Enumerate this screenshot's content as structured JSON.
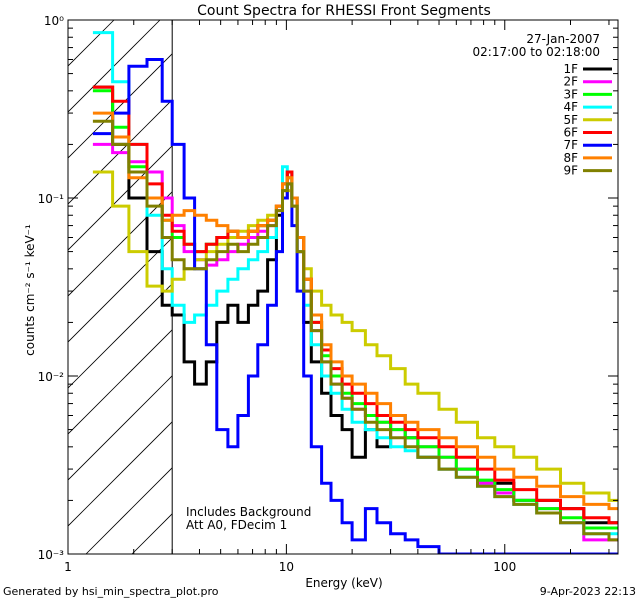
{
  "chart_data": {
    "type": "line",
    "title": "Count Spectra for RHESSI Front Segments",
    "date": "27-Jan-2007",
    "time_range": "02:17:00 to 02:18:00",
    "xlabel": "Energy (keV)",
    "ylabel": "counts cm⁻² s⁻¹ keV⁻¹",
    "xscale": "log",
    "yscale": "log",
    "xlim": [
      1,
      330
    ],
    "ylim": [
      0.001,
      1
    ],
    "x_ticks": [
      {
        "value": 1,
        "label": "1"
      },
      {
        "value": 10,
        "label": "10"
      },
      {
        "value": 100,
        "label": "100"
      }
    ],
    "y_ticks": [
      {
        "value": 1,
        "label": "10⁰"
      },
      {
        "value": 0.1,
        "label": "10⁻¹"
      },
      {
        "value": 0.01,
        "label": "10⁻²"
      },
      {
        "value": 0.001,
        "label": "10⁻³"
      }
    ],
    "hatched_region": {
      "x_from": 1,
      "x_to": 3
    },
    "notes": [
      "Includes Background",
      "Att A0, FDecim 1"
    ],
    "footer_left": "Generated by hsi_min_spectra_plot.pro",
    "footer_right": "9-Apr-2023 22:13",
    "series": [
      {
        "name": "1F",
        "color": "#000000",
        "x": [
          1.3,
          1.6,
          1.9,
          2.3,
          2.7,
          3.0,
          3.4,
          3.8,
          4.3,
          4.8,
          5.4,
          6.0,
          6.7,
          7.4,
          8.2,
          9.0,
          9.6,
          10.1,
          10.6,
          11.2,
          12.0,
          13.0,
          14.5,
          16.0,
          18.0,
          20.0,
          23.0,
          26.0,
          30.0,
          35.0,
          40.0,
          50.0,
          60.0,
          75.0,
          90.0,
          110.0,
          140.0,
          180.0,
          230.0,
          300.0
        ],
        "values": [
          0.42,
          0.2,
          0.1,
          0.05,
          0.025,
          0.022,
          0.012,
          0.009,
          0.012,
          0.02,
          0.025,
          0.02,
          0.025,
          0.03,
          0.045,
          0.08,
          0.12,
          0.14,
          0.1,
          0.05,
          0.02,
          0.012,
          0.008,
          0.006,
          0.005,
          0.0035,
          0.005,
          0.004,
          0.006,
          0.0045,
          0.0035,
          0.003,
          0.003,
          0.0025,
          0.0025,
          0.002,
          0.002,
          0.0018,
          0.0015,
          0.0015
        ]
      },
      {
        "name": "2F",
        "color": "#ff00ff",
        "x": [
          1.3,
          1.6,
          1.9,
          2.3,
          2.7,
          3.0,
          3.4,
          3.8,
          4.3,
          4.8,
          5.4,
          6.0,
          6.7,
          7.4,
          8.2,
          9.0,
          9.6,
          10.1,
          10.6,
          11.2,
          12.0,
          13.0,
          14.5,
          16.0,
          18.0,
          20.0,
          23.0,
          26.0,
          30.0,
          35.0,
          40.0,
          50.0,
          60.0,
          75.0,
          90.0,
          110.0,
          140.0,
          180.0,
          230.0,
          300.0
        ],
        "values": [
          0.2,
          0.18,
          0.16,
          0.14,
          0.1,
          0.07,
          0.05,
          0.045,
          0.042,
          0.045,
          0.05,
          0.055,
          0.06,
          0.065,
          0.07,
          0.085,
          0.1,
          0.12,
          0.09,
          0.05,
          0.03,
          0.018,
          0.012,
          0.009,
          0.0075,
          0.0065,
          0.006,
          0.0055,
          0.005,
          0.0045,
          0.004,
          0.0035,
          0.003,
          0.0025,
          0.0022,
          0.002,
          0.0018,
          0.0015,
          0.0012,
          0.0012
        ]
      },
      {
        "name": "3F",
        "color": "#00ff00",
        "x": [
          1.3,
          1.6,
          1.9,
          2.3,
          2.7,
          3.0,
          3.4,
          3.8,
          4.3,
          4.8,
          5.4,
          6.0,
          6.7,
          7.4,
          8.2,
          9.0,
          9.6,
          10.1,
          10.6,
          11.2,
          12.0,
          13.0,
          14.5,
          16.0,
          18.0,
          20.0,
          23.0,
          26.0,
          30.0,
          35.0,
          40.0,
          50.0,
          60.0,
          75.0,
          90.0,
          110.0,
          140.0,
          180.0,
          230.0,
          300.0
        ],
        "values": [
          0.4,
          0.25,
          0.15,
          0.1,
          0.075,
          0.06,
          0.055,
          0.05,
          0.055,
          0.06,
          0.065,
          0.06,
          0.065,
          0.07,
          0.075,
          0.09,
          0.11,
          0.13,
          0.1,
          0.06,
          0.035,
          0.02,
          0.013,
          0.01,
          0.008,
          0.007,
          0.006,
          0.0055,
          0.005,
          0.0045,
          0.004,
          0.0035,
          0.003,
          0.0026,
          0.0023,
          0.002,
          0.0018,
          0.0016,
          0.0014,
          0.0014
        ]
      },
      {
        "name": "4F",
        "color": "#00ffff",
        "x": [
          1.3,
          1.6,
          1.9,
          2.3,
          2.7,
          3.0,
          3.4,
          3.8,
          4.3,
          4.8,
          5.4,
          6.0,
          6.7,
          7.4,
          8.2,
          9.0,
          9.6,
          10.1,
          10.6,
          11.2,
          12.0,
          13.0,
          14.5,
          16.0,
          18.0,
          20.0,
          23.0,
          26.0,
          30.0,
          35.0,
          40.0,
          50.0,
          60.0,
          75.0,
          90.0,
          110.0,
          140.0,
          180.0,
          230.0,
          300.0
        ],
        "values": [
          0.85,
          0.45,
          0.2,
          0.08,
          0.04,
          0.025,
          0.02,
          0.022,
          0.025,
          0.03,
          0.035,
          0.04,
          0.045,
          0.05,
          0.06,
          0.09,
          0.15,
          0.14,
          0.1,
          0.05,
          0.025,
          0.015,
          0.01,
          0.008,
          0.0065,
          0.0055,
          0.005,
          0.0045,
          0.004,
          0.0038,
          0.0035,
          0.003,
          0.0027,
          0.0024,
          0.0021,
          0.0019,
          0.0017,
          0.0015,
          0.0013,
          0.0013
        ]
      },
      {
        "name": "5F",
        "color": "#cccc00",
        "x": [
          1.3,
          1.6,
          1.9,
          2.3,
          2.7,
          3.0,
          3.4,
          3.8,
          4.3,
          4.8,
          5.4,
          6.0,
          6.7,
          7.4,
          8.2,
          9.0,
          9.6,
          10.1,
          10.6,
          11.2,
          12.0,
          13.0,
          14.5,
          16.0,
          18.0,
          20.0,
          23.0,
          26.0,
          30.0,
          35.0,
          40.0,
          50.0,
          60.0,
          75.0,
          90.0,
          110.0,
          140.0,
          180.0,
          230.0,
          300.0
        ],
        "values": [
          0.14,
          0.09,
          0.05,
          0.032,
          0.03,
          0.035,
          0.04,
          0.045,
          0.05,
          0.055,
          0.06,
          0.065,
          0.07,
          0.075,
          0.08,
          0.09,
          0.1,
          0.11,
          0.09,
          0.06,
          0.04,
          0.03,
          0.025,
          0.022,
          0.02,
          0.018,
          0.015,
          0.013,
          0.011,
          0.009,
          0.008,
          0.0065,
          0.0055,
          0.0045,
          0.004,
          0.0035,
          0.003,
          0.0025,
          0.0022,
          0.002
        ]
      },
      {
        "name": "6F",
        "color": "#ff0000",
        "x": [
          1.3,
          1.6,
          1.9,
          2.3,
          2.7,
          3.0,
          3.4,
          3.8,
          4.3,
          4.8,
          5.4,
          6.0,
          6.7,
          7.4,
          8.2,
          9.0,
          9.6,
          10.1,
          10.6,
          11.2,
          12.0,
          13.0,
          14.5,
          16.0,
          18.0,
          20.0,
          23.0,
          26.0,
          30.0,
          35.0,
          40.0,
          50.0,
          60.0,
          75.0,
          90.0,
          110.0,
          140.0,
          180.0,
          230.0,
          300.0
        ],
        "values": [
          0.42,
          0.35,
          0.2,
          0.12,
          0.08,
          0.065,
          0.055,
          0.05,
          0.055,
          0.06,
          0.065,
          0.06,
          0.065,
          0.07,
          0.075,
          0.09,
          0.12,
          0.14,
          0.1,
          0.06,
          0.035,
          0.02,
          0.014,
          0.011,
          0.009,
          0.008,
          0.007,
          0.006,
          0.0055,
          0.005,
          0.0045,
          0.004,
          0.0035,
          0.003,
          0.0026,
          0.0023,
          0.002,
          0.0018,
          0.0016,
          0.0015
        ]
      },
      {
        "name": "7F",
        "color": "#0000ff",
        "x": [
          1.3,
          1.6,
          1.9,
          2.3,
          2.7,
          3.0,
          3.4,
          3.8,
          4.3,
          4.8,
          5.4,
          6.0,
          6.7,
          7.4,
          8.2,
          9.0,
          9.6,
          10.1,
          10.6,
          11.2,
          12.0,
          13.0,
          14.5,
          16.0,
          18.0,
          20.0,
          23.0,
          26.0,
          30.0,
          35.0,
          40.0,
          50.0,
          60.0,
          75.0,
          90.0,
          110.0,
          140.0,
          180.0,
          230.0,
          300.0
        ],
        "values": [
          0.23,
          0.3,
          0.55,
          0.6,
          0.35,
          0.2,
          0.1,
          0.04,
          0.015,
          0.005,
          0.004,
          0.006,
          0.01,
          0.015,
          0.025,
          0.05,
          0.1,
          0.12,
          0.07,
          0.03,
          0.01,
          0.004,
          0.0025,
          0.002,
          0.0015,
          0.0012,
          0.0018,
          0.0015,
          0.0013,
          0.0012,
          0.0011,
          0.001,
          0.001,
          0.001,
          0.001,
          0.001,
          0.001,
          0.001,
          0.001,
          0.001
        ]
      },
      {
        "name": "8F",
        "color": "#ff8000",
        "x": [
          1.3,
          1.6,
          1.9,
          2.3,
          2.7,
          3.0,
          3.4,
          3.8,
          4.3,
          4.8,
          5.4,
          6.0,
          6.7,
          7.4,
          8.2,
          9.0,
          9.6,
          10.1,
          10.6,
          11.2,
          12.0,
          13.0,
          14.5,
          16.0,
          18.0,
          20.0,
          23.0,
          26.0,
          30.0,
          35.0,
          40.0,
          50.0,
          60.0,
          75.0,
          90.0,
          110.0,
          140.0,
          180.0,
          230.0,
          300.0
        ],
        "values": [
          0.3,
          0.22,
          0.13,
          0.1,
          0.075,
          0.08,
          0.085,
          0.08,
          0.075,
          0.07,
          0.065,
          0.06,
          0.065,
          0.07,
          0.075,
          0.09,
          0.12,
          0.13,
          0.1,
          0.06,
          0.035,
          0.022,
          0.015,
          0.012,
          0.01,
          0.009,
          0.008,
          0.007,
          0.006,
          0.0055,
          0.005,
          0.0045,
          0.004,
          0.0035,
          0.003,
          0.0027,
          0.0024,
          0.0021,
          0.0019,
          0.0018
        ]
      },
      {
        "name": "9F",
        "color": "#808000",
        "x": [
          1.3,
          1.6,
          1.9,
          2.3,
          2.7,
          3.0,
          3.4,
          3.8,
          4.3,
          4.8,
          5.4,
          6.0,
          6.7,
          7.4,
          8.2,
          9.0,
          9.6,
          10.1,
          10.6,
          11.2,
          12.0,
          13.0,
          14.5,
          16.0,
          18.0,
          20.0,
          23.0,
          26.0,
          30.0,
          35.0,
          40.0,
          50.0,
          60.0,
          75.0,
          90.0,
          110.0,
          140.0,
          180.0,
          230.0,
          300.0
        ],
        "values": [
          0.27,
          0.2,
          0.14,
          0.09,
          0.06,
          0.045,
          0.04,
          0.04,
          0.045,
          0.05,
          0.055,
          0.05,
          0.055,
          0.06,
          0.07,
          0.085,
          0.11,
          0.12,
          0.09,
          0.05,
          0.03,
          0.018,
          0.012,
          0.009,
          0.0075,
          0.0065,
          0.0055,
          0.005,
          0.0045,
          0.004,
          0.0035,
          0.003,
          0.0027,
          0.0024,
          0.0021,
          0.0019,
          0.0017,
          0.0015,
          0.0013,
          0.0012
        ]
      }
    ]
  }
}
